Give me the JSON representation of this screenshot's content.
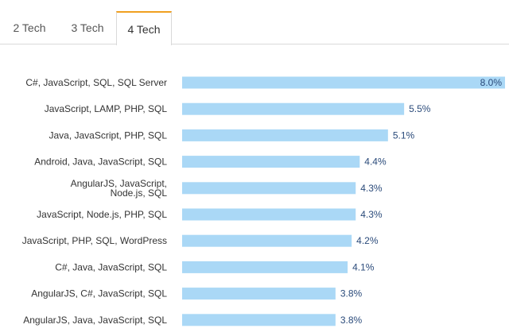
{
  "tabs": [
    {
      "label": "2 Tech",
      "active": false
    },
    {
      "label": "3 Tech",
      "active": false
    },
    {
      "label": "4 Tech",
      "active": true
    }
  ],
  "colors": {
    "bar": "#aad8f6",
    "active_tab_accent": "#f0a020",
    "value_text": "#2a4a7a"
  },
  "chart_data": {
    "type": "bar",
    "orientation": "horizontal",
    "title": "",
    "xlabel": "",
    "ylabel": "",
    "xlim": [
      0,
      8
    ],
    "grid": false,
    "categories": [
      "C#, JavaScript, SQL, SQL Server",
      "JavaScript, LAMP, PHP, SQL",
      "Java, JavaScript, PHP, SQL",
      "Android, Java, JavaScript, SQL",
      "AngularJS, JavaScript, Node.js, SQL",
      "JavaScript, Node.js, PHP, SQL",
      "JavaScript, PHP, SQL, WordPress",
      "C#, Java, JavaScript, SQL",
      "AngularJS, C#, JavaScript, SQL",
      "AngularJS, Java, JavaScript, SQL"
    ],
    "category_lines": [
      [
        "C#, JavaScript, SQL, SQL Server"
      ],
      [
        "JavaScript, LAMP, PHP, SQL"
      ],
      [
        "Java, JavaScript, PHP, SQL"
      ],
      [
        "Android, Java, JavaScript, SQL"
      ],
      [
        "AngularJS, JavaScript,",
        "Node.js, SQL"
      ],
      [
        "JavaScript, Node.js, PHP, SQL"
      ],
      [
        "JavaScript, PHP, SQL, WordPress"
      ],
      [
        "C#, Java, JavaScript, SQL"
      ],
      [
        "AngularJS, C#, JavaScript, SQL"
      ],
      [
        "AngularJS, Java, JavaScript, SQL"
      ]
    ],
    "values": [
      8.0,
      5.5,
      5.1,
      4.4,
      4.3,
      4.3,
      4.2,
      4.1,
      3.8,
      3.8
    ],
    "value_labels": [
      "8.0%",
      "5.5%",
      "5.1%",
      "4.4%",
      "4.3%",
      "4.3%",
      "4.2%",
      "4.1%",
      "3.8%",
      "3.8%"
    ]
  }
}
